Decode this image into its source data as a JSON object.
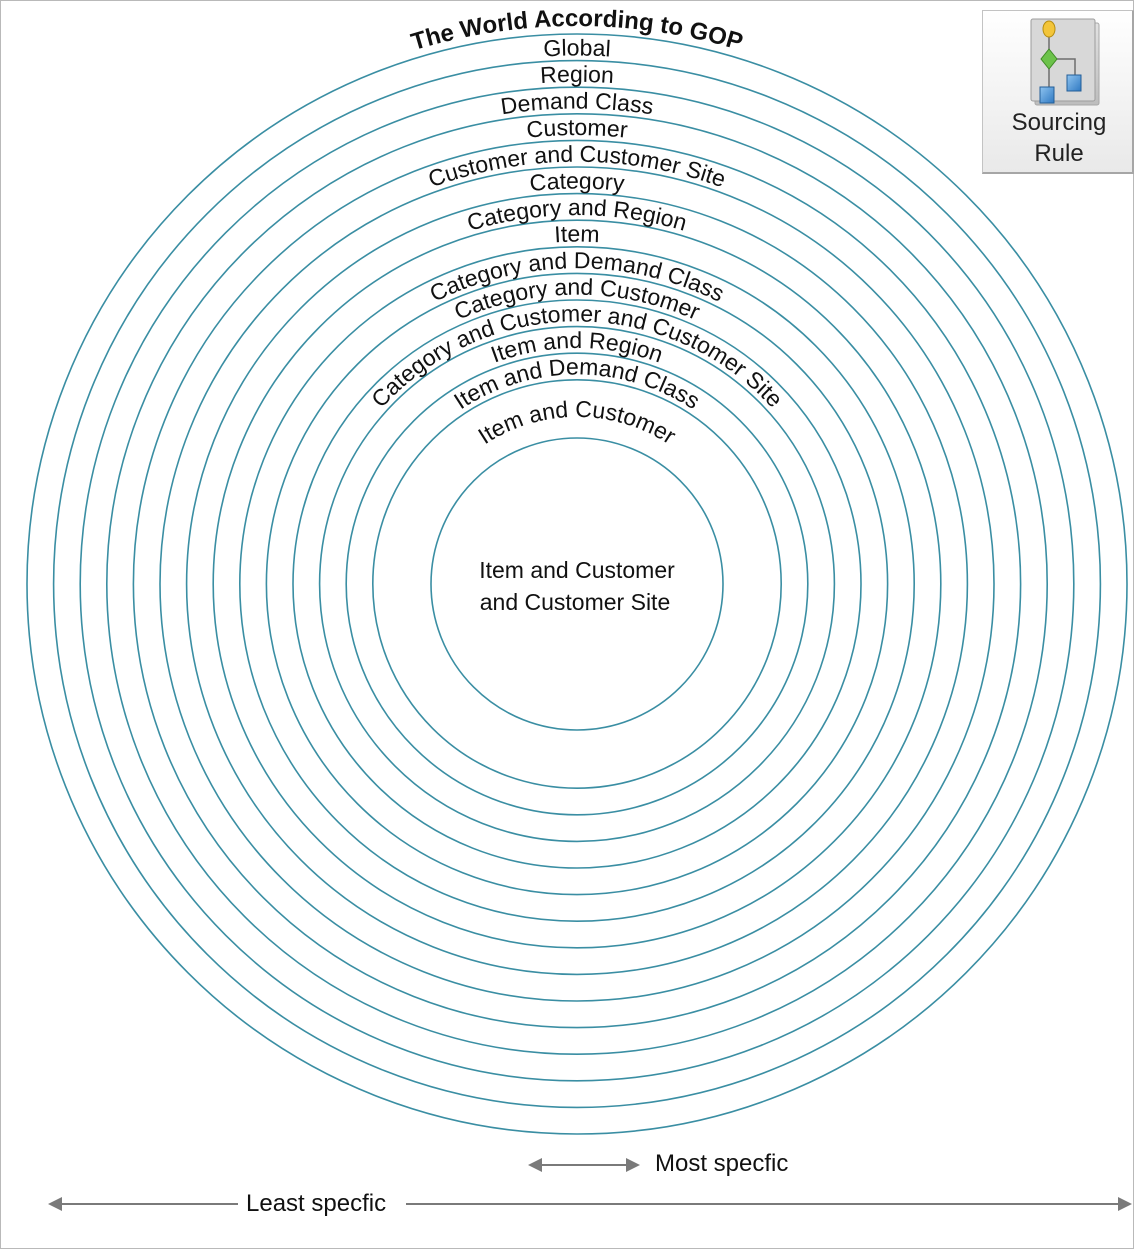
{
  "title": "The World According to GOP",
  "rings": [
    "Global",
    "Region",
    "Demand Class",
    "Customer",
    "Customer and Customer Site",
    "Category",
    "Category and Region",
    "Item",
    "Category and Demand Class",
    "Category and Customer",
    "Category and Customer and Customer Site",
    "Item and Region",
    "Item and Demand Class",
    "Item and Customer"
  ],
  "center": {
    "line1": "Item and Customer",
    "line2": "and Customer Site"
  },
  "scale": {
    "most_specific": "Most specfic",
    "least_specific": "Least specfic"
  },
  "sourcing_rule_button": {
    "label": "Sourcing\nRule",
    "icon": "hierarchy-flow-icon"
  },
  "colors": {
    "ring_stroke": "#3a8ea3",
    "arrow": "#7a7a7a"
  }
}
